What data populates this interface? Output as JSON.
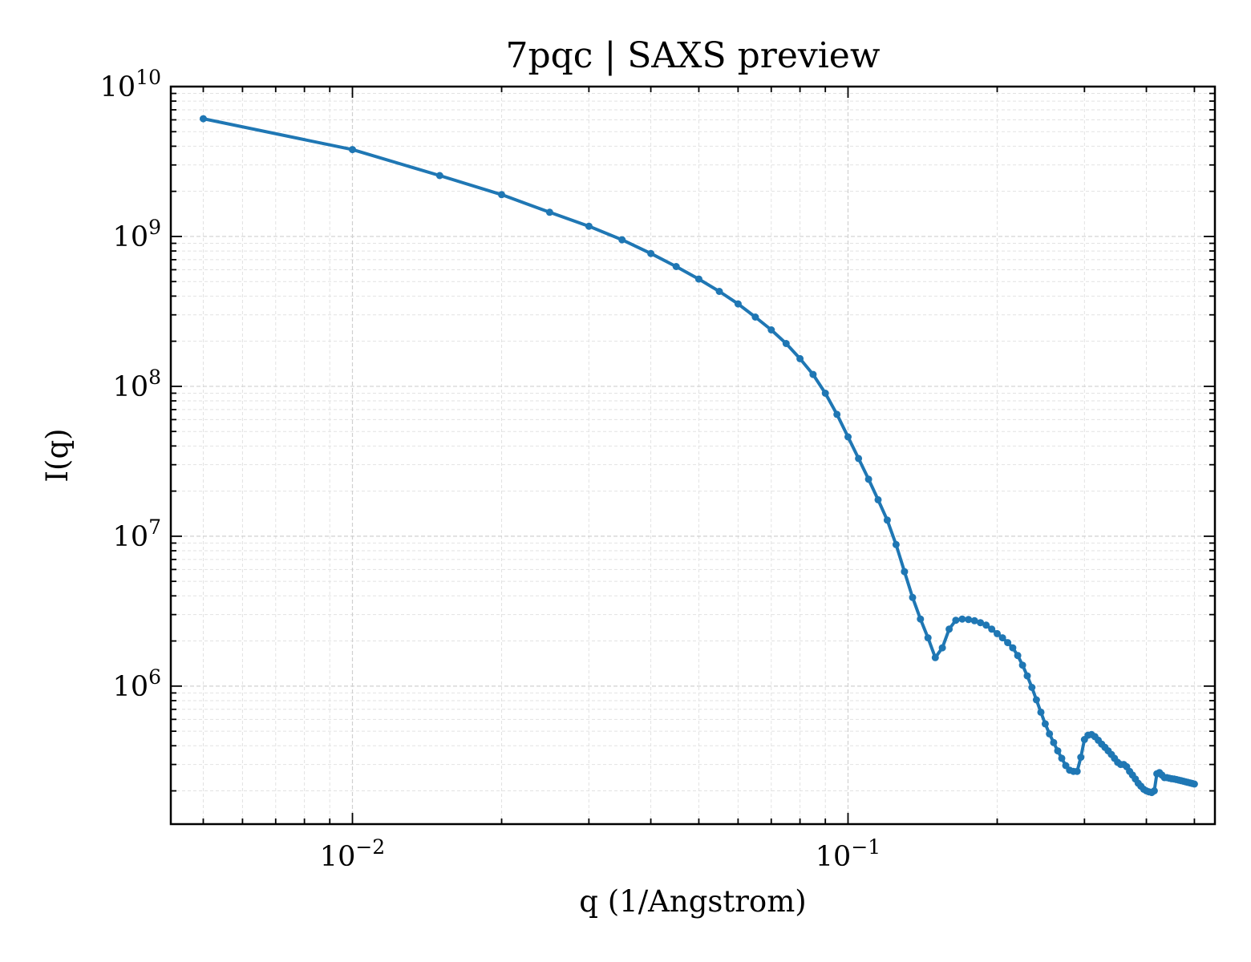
{
  "chart_data": {
    "type": "line",
    "title": "7pqc | SAXS preview",
    "xlabel": "q (1/Angstrom)",
    "ylabel": "I(q)",
    "xscale": "log",
    "yscale": "log",
    "xlim": [
      0.0043,
      0.55
    ],
    "ylim": [
      120000,
      10000000000
    ],
    "grid": true,
    "color": "#1f77b4",
    "x_ticks": [
      {
        "value": 0.01,
        "base": "10",
        "exp": "−2"
      },
      {
        "value": 0.1,
        "base": "10",
        "exp": "−1"
      }
    ],
    "y_ticks": [
      {
        "value": 1000000,
        "base": "10",
        "exp": "6"
      },
      {
        "value": 10000000,
        "base": "10",
        "exp": "7"
      },
      {
        "value": 100000000,
        "base": "10",
        "exp": "8"
      },
      {
        "value": 1000000000,
        "base": "10",
        "exp": "9"
      },
      {
        "value": 10000000000,
        "base": "10",
        "exp": "10"
      }
    ],
    "x": [
      0.005,
      0.01,
      0.015,
      0.02,
      0.025,
      0.03,
      0.035,
      0.04,
      0.045,
      0.05,
      0.055,
      0.06,
      0.065,
      0.07,
      0.075,
      0.08,
      0.085,
      0.09,
      0.095,
      0.1,
      0.105,
      0.11,
      0.115,
      0.12,
      0.125,
      0.13,
      0.135,
      0.14,
      0.145,
      0.15,
      0.155,
      0.16,
      0.165,
      0.17,
      0.175,
      0.18,
      0.185,
      0.19,
      0.195,
      0.2,
      0.205,
      0.21,
      0.215,
      0.22,
      0.225,
      0.23,
      0.235,
      0.24,
      0.245,
      0.25,
      0.255,
      0.26,
      0.265,
      0.27,
      0.275,
      0.28,
      0.285,
      0.29,
      0.295,
      0.3,
      0.305,
      0.31,
      0.315,
      0.32,
      0.325,
      0.33,
      0.335,
      0.34,
      0.345,
      0.35,
      0.355,
      0.36,
      0.365,
      0.37,
      0.375,
      0.38,
      0.385,
      0.39,
      0.395,
      0.4,
      0.405,
      0.41,
      0.415,
      0.42,
      0.425,
      0.43,
      0.435,
      0.44,
      0.445,
      0.45,
      0.455,
      0.46,
      0.465,
      0.47,
      0.475,
      0.48,
      0.485,
      0.49,
      0.495,
      0.5
    ],
    "y": [
      6100000000,
      3800000000,
      2550000000,
      1900000000,
      1450000000,
      1170000000,
      950000000,
      770000000,
      630000000,
      520000000,
      430000000,
      355000000,
      290000000,
      238000000,
      193000000,
      153000000,
      120000000,
      90000000,
      65000000,
      46000000,
      33000000,
      24000000,
      17500000,
      12800000,
      8800000,
      5800000,
      3900000,
      2800000,
      2100000,
      1550000,
      1800000,
      2400000,
      2750000,
      2800000,
      2780000,
      2730000,
      2650000,
      2550000,
      2400000,
      2240000,
      2100000,
      1950000,
      1800000,
      1600000,
      1380000,
      1170000,
      980000,
      810000,
      670000,
      560000,
      480000,
      420000,
      370000,
      330000,
      295000,
      275000,
      270000,
      270000,
      335000,
      440000,
      470000,
      475000,
      460000,
      435000,
      410000,
      390000,
      370000,
      350000,
      330000,
      310000,
      300000,
      300000,
      290000,
      270000,
      255000,
      240000,
      225000,
      215000,
      205000,
      200000,
      197000,
      195000,
      200000,
      260000,
      265000,
      255000,
      245000,
      245000,
      243000,
      241000,
      240000,
      238000,
      236000,
      234000,
      232000,
      230000,
      228000,
      226000,
      224000,
      222000
    ]
  }
}
